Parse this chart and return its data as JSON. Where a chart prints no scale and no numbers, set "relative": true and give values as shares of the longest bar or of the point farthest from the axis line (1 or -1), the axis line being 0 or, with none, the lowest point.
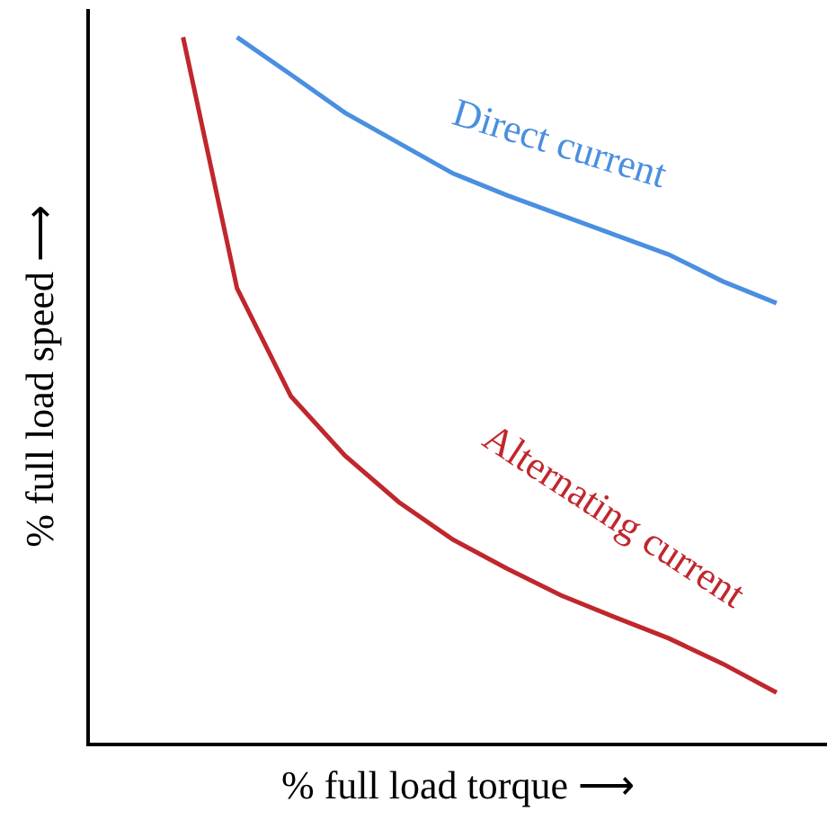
{
  "chart_data": {
    "type": "line",
    "relative": true,
    "xlabel": "% full load torque ⟶",
    "ylabel": "% full load speed ⟶",
    "legend": false,
    "marker": "none",
    "line_style": "solid",
    "categories": [
      null,
      null,
      null,
      null,
      null,
      null,
      null,
      null,
      null,
      null,
      null,
      null
    ],
    "series": [
      {
        "name": "Direct current",
        "color": "#4a8fe0",
        "values": [
          null,
          1,
          0.947,
          0.893,
          0.85,
          0.807,
          0.776,
          0.748,
          0.72,
          0.692,
          0.654,
          0.623
        ]
      },
      {
        "name": "Alternating current",
        "color": "#c0272d",
        "values": [
          1,
          0.644,
          0.491,
          0.407,
          0.341,
          0.288,
          0.247,
          0.209,
          0.178,
          0.148,
          0.112,
          0.071
        ]
      }
    ]
  }
}
